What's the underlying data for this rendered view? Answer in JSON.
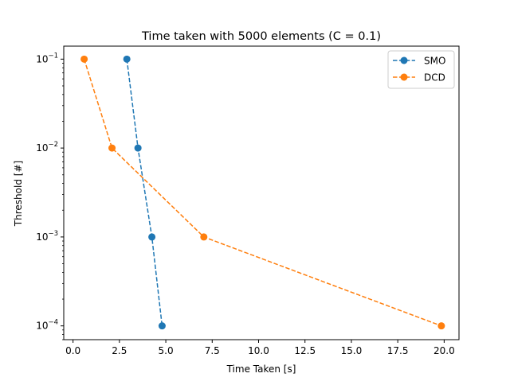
{
  "chart_data": {
    "type": "line",
    "title": "Time taken with 5000 elements (C = 0.1)",
    "xlabel": "Time Taken [s]",
    "ylabel": "Threshold [#]",
    "xlim": [
      -0.5,
      20.8
    ],
    "ylim": [
      7e-05,
      0.14
    ],
    "yscale": "log",
    "grid": false,
    "legend_position": "top-right",
    "x_ticks": [
      {
        "value": 0.0,
        "label": "0.0"
      },
      {
        "value": 2.5,
        "label": "2.5"
      },
      {
        "value": 5.0,
        "label": "5.0"
      },
      {
        "value": 7.5,
        "label": "7.5"
      },
      {
        "value": 10.0,
        "label": "10.0"
      },
      {
        "value": 12.5,
        "label": "12.5"
      },
      {
        "value": 15.0,
        "label": "15.0"
      },
      {
        "value": 17.5,
        "label": "17.5"
      },
      {
        "value": 20.0,
        "label": "20.0"
      }
    ],
    "y_ticks": [
      {
        "value": 0.1,
        "base": "10",
        "exp": "−1"
      },
      {
        "value": 0.01,
        "base": "10",
        "exp": "−2"
      },
      {
        "value": 0.001,
        "base": "10",
        "exp": "−3"
      },
      {
        "value": 0.0001,
        "base": "10",
        "exp": "−4"
      }
    ],
    "series": [
      {
        "name": "SMO",
        "color": "#1f77b4",
        "linestyle": "dashed",
        "marker": "circle",
        "x": [
          2.9,
          3.5,
          4.25,
          4.8
        ],
        "y": [
          0.1,
          0.01,
          0.001,
          0.0001
        ]
      },
      {
        "name": "DCD",
        "color": "#ff7f0e",
        "linestyle": "dashed",
        "marker": "circle",
        "x": [
          0.6,
          2.1,
          7.05,
          19.85
        ],
        "y": [
          0.1,
          0.01,
          0.001,
          0.0001
        ]
      }
    ]
  }
}
